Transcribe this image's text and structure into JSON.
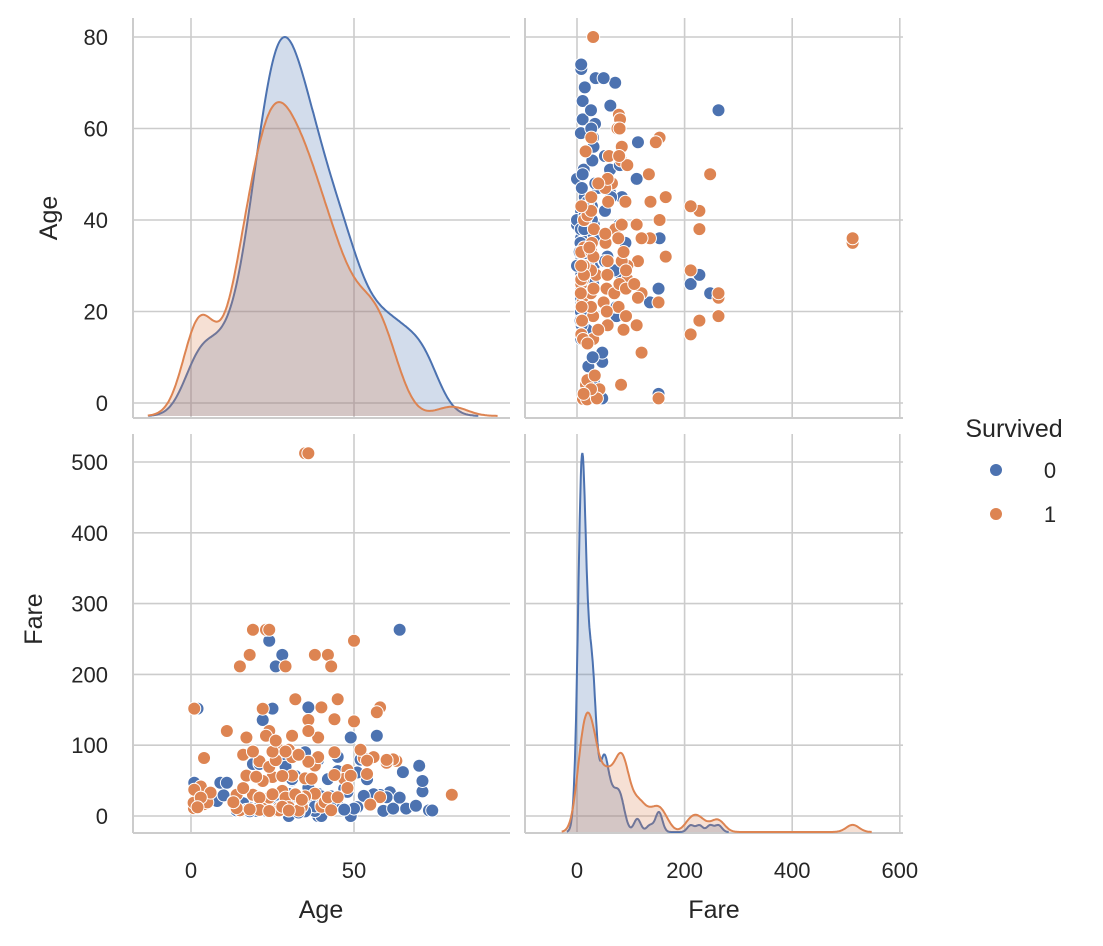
{
  "chart_data": {
    "type": "pairplot",
    "variables": [
      "Age",
      "Fare"
    ],
    "hue": {
      "title": "Survived",
      "levels": [
        "0",
        "1"
      ],
      "colors": [
        "#4c72b0",
        "#dd8452"
      ]
    },
    "diag_kind": "kde",
    "axes": {
      "Age": {
        "label": "Age",
        "ticks": [
          0,
          50
        ],
        "y_ticks": [
          0,
          20,
          40,
          60,
          80
        ],
        "lim": [
          -18,
          99
        ]
      },
      "Fare": {
        "label": "Fare",
        "ticks": [
          0,
          200,
          400,
          600
        ],
        "y_ticks": [
          0,
          100,
          200,
          300,
          400,
          500
        ],
        "lim": [
          -90,
          610
        ],
        "ylim": [
          -25,
          540
        ]
      }
    },
    "grid": true,
    "legend_position": "right",
    "points": {
      "0": [
        [
          22,
          7.25
        ],
        [
          35,
          8.05
        ],
        [
          54,
          51.9
        ],
        [
          2,
          21.1
        ],
        [
          20,
          8.05
        ],
        [
          39,
          31.3
        ],
        [
          14,
          7.85
        ],
        [
          2,
          29.1
        ],
        [
          31,
          18
        ],
        [
          35,
          26
        ],
        [
          40,
          27.7
        ],
        [
          66,
          10.5
        ],
        [
          28,
          82.2
        ],
        [
          42,
          52
        ],
        [
          21,
          8.05
        ],
        [
          18,
          11.5
        ],
        [
          40,
          9.5
        ],
        [
          27,
          21
        ],
        [
          21,
          7.8
        ],
        [
          25,
          7.9
        ],
        [
          28,
          8.05
        ],
        [
          26,
          7.9
        ],
        [
          45,
          14.5
        ],
        [
          16,
          18
        ],
        [
          28,
          7.9
        ],
        [
          24,
          247.5
        ],
        [
          29,
          7.9
        ],
        [
          20,
          9.8
        ],
        [
          46,
          61.2
        ],
        [
          26,
          7.75
        ],
        [
          59,
          7.25
        ],
        [
          71,
          34.7
        ],
        [
          22,
          7.9
        ],
        [
          34,
          10.5
        ],
        [
          37,
          26
        ],
        [
          28,
          27.7
        ],
        [
          26,
          211.3
        ],
        [
          28,
          227.5
        ],
        [
          65,
          61.98
        ],
        [
          61,
          33.5
        ],
        [
          44,
          26
        ],
        [
          32,
          7.9
        ],
        [
          30,
          8.05
        ],
        [
          36,
          7.9
        ],
        [
          64,
          263
        ],
        [
          30,
          31
        ],
        [
          47,
          52
        ],
        [
          37,
          53.1
        ],
        [
          24,
          13
        ],
        [
          47,
          38.5
        ],
        [
          70,
          71
        ],
        [
          62,
          10.5
        ],
        [
          51,
          61.4
        ],
        [
          58,
          29.7
        ],
        [
          48,
          34
        ],
        [
          49,
          110.9
        ],
        [
          33,
          9.5
        ],
        [
          56,
          30.7
        ],
        [
          43,
          27.7
        ],
        [
          45,
          83.5
        ],
        [
          39,
          79.2
        ],
        [
          22,
          135.6
        ],
        [
          19,
          73.5
        ],
        [
          36,
          40.1
        ],
        [
          25,
          151.6
        ],
        [
          2,
          151.6
        ],
        [
          36,
          153.5
        ],
        [
          42,
          7.65
        ],
        [
          28,
          7.9
        ],
        [
          33,
          12.3
        ],
        [
          51,
          12.5
        ],
        [
          55,
          16
        ],
        [
          17,
          8.66
        ],
        [
          73,
          8
        ],
        [
          74,
          7.8
        ],
        [
          9,
          46.9
        ],
        [
          11,
          46.9
        ],
        [
          16,
          39.7
        ],
        [
          5,
          31.4
        ],
        [
          4,
          27.9
        ],
        [
          1,
          46.9
        ],
        [
          8,
          21.1
        ],
        [
          10,
          29.1
        ],
        [
          13,
          20.25
        ],
        [
          30,
          0
        ],
        [
          39,
          0
        ],
        [
          40,
          0
        ],
        [
          49,
          0
        ],
        [
          36,
          7.5
        ],
        [
          23,
          13
        ],
        [
          27,
          10.5
        ],
        [
          31,
          50.5
        ],
        [
          38,
          7.05
        ],
        [
          41,
          14.1
        ],
        [
          32,
          15.5
        ],
        [
          35,
          90
        ],
        [
          45,
          63.4
        ],
        [
          52,
          79.6
        ],
        [
          57,
          113.3
        ],
        [
          71,
          49.5
        ],
        [
          29,
          15.2
        ],
        [
          33,
          8.7
        ],
        [
          27,
          7.2
        ],
        [
          24,
          9.5
        ],
        [
          38,
          13.5
        ],
        [
          19,
          7.9
        ],
        [
          44,
          19.9
        ],
        [
          50,
          10.5
        ],
        [
          32,
          56.5
        ],
        [
          25,
          24.1
        ],
        [
          29,
          69.5
        ],
        [
          24,
          8.05
        ],
        [
          34,
          16.1
        ],
        [
          21,
          73.5
        ],
        [
          30,
          21
        ],
        [
          23,
          7.55
        ],
        [
          31,
          52
        ],
        [
          40,
          15.5
        ],
        [
          35,
          6.5
        ],
        [
          27,
          14.4
        ],
        [
          20,
          7.23
        ],
        [
          18,
          6.75
        ],
        [
          33,
          5
        ],
        [
          43,
          21
        ],
        [
          26,
          30
        ],
        [
          47,
          9
        ],
        [
          53,
          28.5
        ],
        [
          60,
          26.5
        ],
        [
          64,
          26
        ],
        [
          69,
          14.5
        ]
      ],
      "1": [
        [
          38,
          71.3
        ],
        [
          26,
          7.9
        ],
        [
          35,
          53.1
        ],
        [
          27,
          11.1
        ],
        [
          14,
          30.1
        ],
        [
          4,
          16.7
        ],
        [
          58,
          26.6
        ],
        [
          55,
          16
        ],
        [
          34,
          13
        ],
        [
          15,
          8.03
        ],
        [
          28,
          35.5
        ],
        [
          38,
          31.4
        ],
        [
          19,
          263
        ],
        [
          23,
          263
        ],
        [
          24,
          263
        ],
        [
          35,
          512.3
        ],
        [
          36,
          512.3
        ],
        [
          50,
          247.5
        ],
        [
          18,
          227.5
        ],
        [
          38,
          227.5
        ],
        [
          42,
          227.5
        ],
        [
          15,
          211.3
        ],
        [
          43,
          211.3
        ],
        [
          32,
          164.9
        ],
        [
          45,
          164.9
        ],
        [
          58,
          153.5
        ],
        [
          1,
          151.6
        ],
        [
          24,
          120
        ],
        [
          17,
          110.9
        ],
        [
          11,
          120
        ],
        [
          21,
          77.3
        ],
        [
          16,
          86.5
        ],
        [
          27,
          93.5
        ],
        [
          31,
          113.3
        ],
        [
          36,
          135.6
        ],
        [
          50,
          133.6
        ],
        [
          44,
          136.6
        ],
        [
          39,
          110.9
        ],
        [
          80,
          30
        ],
        [
          63,
          77.9
        ],
        [
          62,
          80
        ],
        [
          60,
          75.2
        ],
        [
          53,
          81.9
        ],
        [
          54,
          59.4
        ],
        [
          48,
          65
        ],
        [
          52,
          93.5
        ],
        [
          56,
          83.2
        ],
        [
          40,
          153.5
        ],
        [
          3,
          41.6
        ],
        [
          0.9,
          11.1
        ],
        [
          0.8,
          18.75
        ],
        [
          1,
          37
        ],
        [
          5,
          19.3
        ],
        [
          6,
          33
        ],
        [
          3,
          26
        ],
        [
          4,
          81.9
        ],
        [
          2,
          12.3
        ],
        [
          14,
          11.2
        ],
        [
          22,
          10.5
        ],
        [
          24,
          26
        ],
        [
          29,
          26
        ],
        [
          30,
          12.5
        ],
        [
          33,
          7.8
        ],
        [
          27,
          7.9
        ],
        [
          19,
          30
        ],
        [
          25,
          55
        ],
        [
          21,
          26
        ],
        [
          23,
          113.3
        ],
        [
          31,
          57
        ],
        [
          35,
          27.7
        ],
        [
          40,
          13
        ],
        [
          41,
          19.5
        ],
        [
          42,
          26.3
        ],
        [
          24,
          69.3
        ],
        [
          30,
          93.5
        ],
        [
          28,
          13
        ],
        [
          33,
          26.55
        ],
        [
          36,
          120
        ],
        [
          22,
          49.5
        ],
        [
          17,
          57
        ],
        [
          16,
          39.4
        ],
        [
          45,
          26.55
        ],
        [
          47,
          52.5
        ],
        [
          49,
          56.9
        ],
        [
          44,
          57.9
        ],
        [
          54,
          78.3
        ],
        [
          60,
          79.2
        ],
        [
          32,
          30.5
        ],
        [
          26,
          78.85
        ],
        [
          21,
          8.66
        ],
        [
          18,
          9.35
        ],
        [
          13,
          19.5
        ],
        [
          28,
          56.5
        ],
        [
          31,
          83.15
        ],
        [
          37,
          52.55
        ],
        [
          29,
          91.1
        ],
        [
          34,
          23
        ],
        [
          43,
          8.05
        ],
        [
          22,
          151.55
        ],
        [
          39,
          83.16
        ],
        [
          24,
          7.1
        ],
        [
          36,
          76.7
        ],
        [
          44,
          90
        ],
        [
          25,
          91
        ],
        [
          20,
          55.4
        ],
        [
          26,
          106.4
        ],
        [
          33,
          86.5
        ],
        [
          48,
          39.6
        ],
        [
          57,
          146.5
        ],
        [
          29,
          211.3
        ],
        [
          19,
          91.1
        ],
        [
          25,
          30.7
        ],
        [
          30,
          7.7
        ]
      ]
    }
  }
}
